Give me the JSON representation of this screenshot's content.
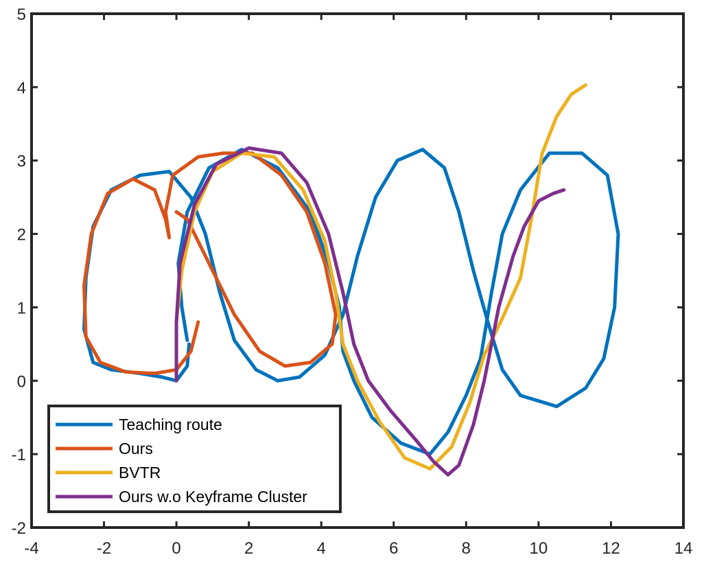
{
  "chart_data": {
    "type": "line",
    "title": "",
    "xlabel": "",
    "ylabel": "",
    "xlim": [
      -4,
      14
    ],
    "ylim": [
      -2,
      5
    ],
    "xticks": [
      "-4",
      "-2",
      "0",
      "2",
      "4",
      "6",
      "8",
      "10",
      "12",
      "14"
    ],
    "yticks": [
      "-2",
      "-1",
      "0",
      "1",
      "2",
      "3",
      "4",
      "5"
    ],
    "grid": false,
    "legend_position": "bottom-left",
    "series": [
      {
        "name": "Teaching route",
        "color": "#0072BD",
        "points": [
          [
            0.3,
            0.55
          ],
          [
            0.15,
            1.0
          ],
          [
            0.05,
            1.6
          ],
          [
            0.3,
            2.3
          ],
          [
            0.9,
            2.9
          ],
          [
            1.8,
            3.15
          ],
          [
            2.8,
            2.9
          ],
          [
            3.7,
            2.3
          ],
          [
            4.2,
            1.6
          ],
          [
            4.5,
            1.0
          ],
          [
            4.6,
            0.4
          ],
          [
            4.9,
            0.0
          ],
          [
            5.4,
            -0.5
          ],
          [
            6.2,
            -0.85
          ],
          [
            7.0,
            -1.0
          ],
          [
            7.5,
            -0.7
          ],
          [
            8.0,
            -0.2
          ],
          [
            8.4,
            0.3
          ],
          [
            8.7,
            1.2
          ],
          [
            9.0,
            2.0
          ],
          [
            9.5,
            2.6
          ],
          [
            10.3,
            3.1
          ],
          [
            11.2,
            3.1
          ],
          [
            11.9,
            2.8
          ],
          [
            12.2,
            2.0
          ],
          [
            12.1,
            1.0
          ],
          [
            11.8,
            0.3
          ],
          [
            11.3,
            -0.1
          ],
          [
            10.5,
            -0.35
          ],
          [
            9.5,
            -0.2
          ],
          [
            9.0,
            0.15
          ],
          [
            8.6,
            0.8
          ],
          [
            8.2,
            1.5
          ],
          [
            7.8,
            2.3
          ],
          [
            7.4,
            2.9
          ],
          [
            6.8,
            3.15
          ],
          [
            6.1,
            3.0
          ],
          [
            5.5,
            2.5
          ],
          [
            5.0,
            1.7
          ],
          [
            4.6,
            0.9
          ],
          [
            4.1,
            0.35
          ],
          [
            3.4,
            0.05
          ],
          [
            2.8,
            0.0
          ],
          [
            2.2,
            0.15
          ],
          [
            1.6,
            0.55
          ],
          [
            1.2,
            1.2
          ],
          [
            0.8,
            2.0
          ],
          [
            0.4,
            2.5
          ],
          [
            -0.2,
            2.85
          ],
          [
            -1.0,
            2.8
          ],
          [
            -1.8,
            2.6
          ],
          [
            -2.3,
            2.1
          ],
          [
            -2.5,
            1.4
          ],
          [
            -2.55,
            0.7
          ],
          [
            -2.3,
            0.25
          ],
          [
            -1.8,
            0.15
          ],
          [
            -1.0,
            0.1
          ],
          [
            -0.4,
            0.05
          ],
          [
            0.0,
            0.0
          ],
          [
            0.3,
            0.2
          ],
          [
            0.35,
            0.5
          ]
        ]
      },
      {
        "name": "Ours",
        "color": "#D95319",
        "points": [
          [
            0.6,
            0.8
          ],
          [
            0.4,
            0.4
          ],
          [
            0.0,
            0.15
          ],
          [
            -0.6,
            0.1
          ],
          [
            -1.4,
            0.12
          ],
          [
            -2.1,
            0.25
          ],
          [
            -2.5,
            0.6
          ],
          [
            -2.55,
            1.3
          ],
          [
            -2.35,
            2.0
          ],
          [
            -1.9,
            2.55
          ],
          [
            -1.2,
            2.75
          ],
          [
            -0.6,
            2.6
          ],
          [
            -0.3,
            2.2
          ],
          [
            -0.2,
            1.95
          ],
          [
            -0.3,
            2.3
          ],
          [
            -0.1,
            2.8
          ],
          [
            0.6,
            3.05
          ],
          [
            1.3,
            3.1
          ],
          [
            2.1,
            3.1
          ],
          [
            2.9,
            2.8
          ],
          [
            3.6,
            2.3
          ],
          [
            4.1,
            1.6
          ],
          [
            4.4,
            0.9
          ],
          [
            4.3,
            0.5
          ],
          [
            3.7,
            0.25
          ],
          [
            3.0,
            0.2
          ],
          [
            2.3,
            0.4
          ],
          [
            1.6,
            0.9
          ],
          [
            1.0,
            1.5
          ],
          [
            0.3,
            2.2
          ],
          [
            0.0,
            2.3
          ]
        ]
      },
      {
        "name": "BVTR",
        "color": "#EDB120",
        "points": [
          [
            0.0,
            0.0
          ],
          [
            0.0,
            0.8
          ],
          [
            0.15,
            1.5
          ],
          [
            0.5,
            2.3
          ],
          [
            1.0,
            2.85
          ],
          [
            1.8,
            3.1
          ],
          [
            2.7,
            3.05
          ],
          [
            3.5,
            2.6
          ],
          [
            4.1,
            1.9
          ],
          [
            4.4,
            1.2
          ],
          [
            4.6,
            0.5
          ],
          [
            5.0,
            0.0
          ],
          [
            5.6,
            -0.55
          ],
          [
            6.3,
            -1.05
          ],
          [
            7.0,
            -1.2
          ],
          [
            7.6,
            -0.9
          ],
          [
            8.1,
            -0.3
          ],
          [
            8.5,
            0.35
          ],
          [
            9.0,
            0.85
          ],
          [
            9.5,
            1.4
          ],
          [
            9.8,
            2.2
          ],
          [
            10.1,
            3.1
          ],
          [
            10.5,
            3.6
          ],
          [
            10.9,
            3.9
          ],
          [
            11.3,
            4.03
          ]
        ]
      },
      {
        "name": "Ours w.o Keyframe Cluster",
        "color": "#7E2F8E",
        "points": [
          [
            0.0,
            0.0
          ],
          [
            0.0,
            0.8
          ],
          [
            0.1,
            1.6
          ],
          [
            0.5,
            2.4
          ],
          [
            1.1,
            2.95
          ],
          [
            2.0,
            3.17
          ],
          [
            2.9,
            3.1
          ],
          [
            3.6,
            2.7
          ],
          [
            4.2,
            2.0
          ],
          [
            4.6,
            1.2
          ],
          [
            4.9,
            0.5
          ],
          [
            5.3,
            0.0
          ],
          [
            5.9,
            -0.4
          ],
          [
            6.6,
            -0.8
          ],
          [
            7.1,
            -1.1
          ],
          [
            7.5,
            -1.28
          ],
          [
            7.8,
            -1.15
          ],
          [
            8.2,
            -0.6
          ],
          [
            8.5,
            0.0
          ],
          [
            8.7,
            0.5
          ],
          [
            8.9,
            1.0
          ],
          [
            9.3,
            1.7
          ],
          [
            9.6,
            2.1
          ],
          [
            10.0,
            2.45
          ],
          [
            10.4,
            2.55
          ],
          [
            10.7,
            2.6
          ]
        ]
      }
    ]
  }
}
